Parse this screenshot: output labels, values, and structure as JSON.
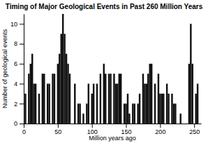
{
  "chart_data": {
    "type": "bar",
    "title": "Timing of Major Geological Events in Past 260 Million Years",
    "x_label": "Million years ago",
    "y_label": "Number of geological events",
    "x": [
      2.5,
      7.5,
      10,
      12.5,
      15,
      17.5,
      22.5,
      27.5,
      30,
      35,
      37.5,
      42.5,
      45,
      50,
      52.5,
      55,
      57.5,
      60,
      62.5,
      65,
      67.5,
      75,
      80,
      82.5,
      87.5,
      92.5,
      95,
      100,
      102.5,
      107.5,
      112.5,
      117.5,
      120,
      125,
      127.5,
      132.5,
      135,
      137.5,
      140,
      142.5,
      147.5,
      150,
      152.5,
      155,
      160,
      162.5,
      167.5,
      170,
      175,
      177.5,
      180,
      182.5,
      185,
      187.5,
      192.5,
      197.5,
      200,
      202.5,
      205,
      210,
      212.5,
      217.5,
      220,
      222.5,
      230,
      242.5,
      245,
      247.5,
      252.5,
      255
    ],
    "values": [
      3,
      5,
      6,
      7,
      4,
      4,
      3,
      5,
      5,
      4,
      4,
      5,
      5,
      6,
      7,
      9,
      11,
      9,
      7,
      6,
      5,
      4,
      2,
      2,
      1,
      2,
      4,
      3,
      4,
      4,
      5,
      6,
      5,
      5,
      5,
      5,
      4,
      4,
      5,
      5,
      2,
      2,
      3,
      1,
      2,
      2,
      2,
      3,
      5,
      4,
      4,
      5,
      6,
      6,
      4,
      5,
      3,
      3,
      3,
      4,
      3,
      3,
      2,
      2,
      1,
      6,
      10,
      6,
      3,
      4
    ],
    "color": "#111111",
    "xlim": [
      0,
      260
    ],
    "ylim": [
      0,
      11
    ],
    "xticks": [
      0,
      50,
      100,
      150,
      200,
      250
    ],
    "yticks": [
      0,
      2,
      4,
      6,
      8,
      10
    ],
    "grid": false
  }
}
